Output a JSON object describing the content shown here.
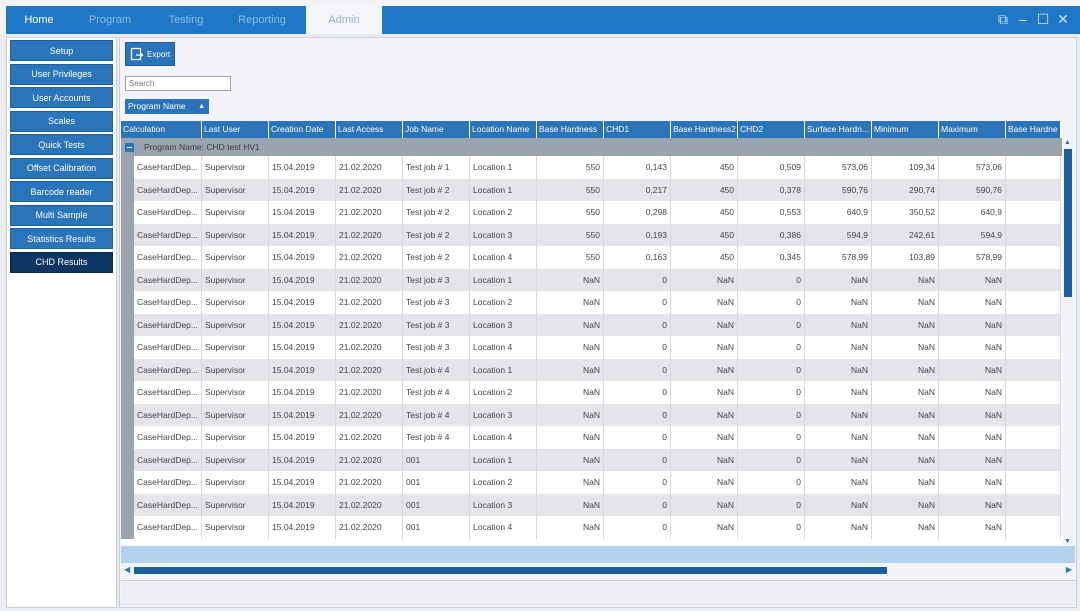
{
  "tabs": [
    {
      "label": "Home"
    },
    {
      "label": "Program"
    },
    {
      "label": "Testing"
    },
    {
      "label": "Reporting"
    },
    {
      "label": "Admin"
    }
  ],
  "active_tab": "Admin",
  "window_controls": {
    "restore_icon": "restore-icon",
    "minimize_icon": "minimize-icon",
    "maximize_icon": "maximize-icon",
    "close_icon": "close-icon"
  },
  "sidebar": {
    "items": [
      {
        "label": "Setup"
      },
      {
        "label": "User Privileges"
      },
      {
        "label": "User Accounts"
      },
      {
        "label": "Scales"
      },
      {
        "label": "Quick Tests"
      },
      {
        "label": "Offset Calibration"
      },
      {
        "label": "Barcode reader"
      },
      {
        "label": "Multi Sample"
      },
      {
        "label": "Statistics Results"
      },
      {
        "label": "CHD Results"
      }
    ],
    "selected": "CHD Results"
  },
  "toolbar": {
    "export_label": "Export"
  },
  "search": {
    "placeholder": "Search"
  },
  "grouping": {
    "chip_label": "Program Name",
    "group_header": "Program Name:  CHD test HV1"
  },
  "table": {
    "columns": [
      "Calculation",
      "Last User",
      "Creation Date",
      "Last Access",
      "Job Name",
      "Location Name",
      "Base Hardness",
      "CHD1",
      "Base Hardness2",
      "CHD2",
      "Surface Hardn...",
      "Minimum",
      "Maximum",
      "Base Hardne"
    ],
    "rows": [
      [
        "CaseHardDep...",
        "Supervisor",
        "15.04.2019",
        "21.02.2020",
        "Test job # 1",
        "Location 1",
        "550",
        "0,143",
        "450",
        "0,509",
        "573,06",
        "109,34",
        "573,06",
        ""
      ],
      [
        "CaseHardDep...",
        "Supervisor",
        "15.04.2019",
        "21.02.2020",
        "Test job # 2",
        "Location 1",
        "550",
        "0,217",
        "450",
        "0,378",
        "590,76",
        "290,74",
        "590,76",
        ""
      ],
      [
        "CaseHardDep...",
        "Supervisor",
        "15.04.2019",
        "21.02.2020",
        "Test job # 2",
        "Location 2",
        "550",
        "0,298",
        "450",
        "0,553",
        "640,9",
        "350,52",
        "640,9",
        ""
      ],
      [
        "CaseHardDep...",
        "Supervisor",
        "15.04.2019",
        "21.02.2020",
        "Test job # 2",
        "Location 3",
        "550",
        "0,193",
        "450",
        "0,386",
        "594,9",
        "242,61",
        "594,9",
        ""
      ],
      [
        "CaseHardDep...",
        "Supervisor",
        "15.04.2019",
        "21.02.2020",
        "Test job # 2",
        "Location 4",
        "550",
        "0,163",
        "450",
        "0,345",
        "578,99",
        "103,89",
        "578,99",
        ""
      ],
      [
        "CaseHardDep...",
        "Supervisor",
        "15.04.2019",
        "21.02.2020",
        "Test job # 3",
        "Location 1",
        "NaN",
        "0",
        "NaN",
        "0",
        "NaN",
        "NaN",
        "NaN",
        ""
      ],
      [
        "CaseHardDep...",
        "Supervisor",
        "15.04.2019",
        "21.02.2020",
        "Test job # 3",
        "Location 2",
        "NaN",
        "0",
        "NaN",
        "0",
        "NaN",
        "NaN",
        "NaN",
        ""
      ],
      [
        "CaseHardDep...",
        "Supervisor",
        "15.04.2019",
        "21.02.2020",
        "Test job # 3",
        "Location 3",
        "NaN",
        "0",
        "NaN",
        "0",
        "NaN",
        "NaN",
        "NaN",
        ""
      ],
      [
        "CaseHardDep...",
        "Supervisor",
        "15.04.2019",
        "21.02.2020",
        "Test job # 3",
        "Location 4",
        "NaN",
        "0",
        "NaN",
        "0",
        "NaN",
        "NaN",
        "NaN",
        ""
      ],
      [
        "CaseHardDep...",
        "Supervisor",
        "15.04.2019",
        "21.02.2020",
        "Test job # 4",
        "Location 1",
        "NaN",
        "0",
        "NaN",
        "0",
        "NaN",
        "NaN",
        "NaN",
        ""
      ],
      [
        "CaseHardDep...",
        "Supervisor",
        "15.04.2019",
        "21.02.2020",
        "Test job # 4",
        "Location 2",
        "NaN",
        "0",
        "NaN",
        "0",
        "NaN",
        "NaN",
        "NaN",
        ""
      ],
      [
        "CaseHardDep...",
        "Supervisor",
        "15.04.2019",
        "21.02.2020",
        "Test job # 4",
        "Location 3",
        "NaN",
        "0",
        "NaN",
        "0",
        "NaN",
        "NaN",
        "NaN",
        ""
      ],
      [
        "CaseHardDep...",
        "Supervisor",
        "15.04.2019",
        "21.02.2020",
        "Test job # 4",
        "Location 4",
        "NaN",
        "0",
        "NaN",
        "0",
        "NaN",
        "NaN",
        "NaN",
        ""
      ],
      [
        "CaseHardDep...",
        "Supervisor",
        "15.04.2019",
        "21.02.2020",
        "001",
        "Location 1",
        "NaN",
        "0",
        "NaN",
        "0",
        "NaN",
        "NaN",
        "NaN",
        ""
      ],
      [
        "CaseHardDep...",
        "Supervisor",
        "15.04.2019",
        "21.02.2020",
        "001",
        "Location 2",
        "NaN",
        "0",
        "NaN",
        "0",
        "NaN",
        "NaN",
        "NaN",
        ""
      ],
      [
        "CaseHardDep...",
        "Supervisor",
        "15.04.2019",
        "21.02.2020",
        "001",
        "Location 3",
        "NaN",
        "0",
        "NaN",
        "0",
        "NaN",
        "NaN",
        "NaN",
        ""
      ],
      [
        "CaseHardDep...",
        "Supervisor",
        "15.04.2019",
        "21.02.2020",
        "001",
        "Location 4",
        "NaN",
        "0",
        "NaN",
        "0",
        "NaN",
        "NaN",
        "NaN",
        ""
      ]
    ]
  },
  "colors": {
    "accent": "#2a74ba",
    "sidebar_selected": "#0f3563",
    "group_row": "#9aa3ae"
  }
}
